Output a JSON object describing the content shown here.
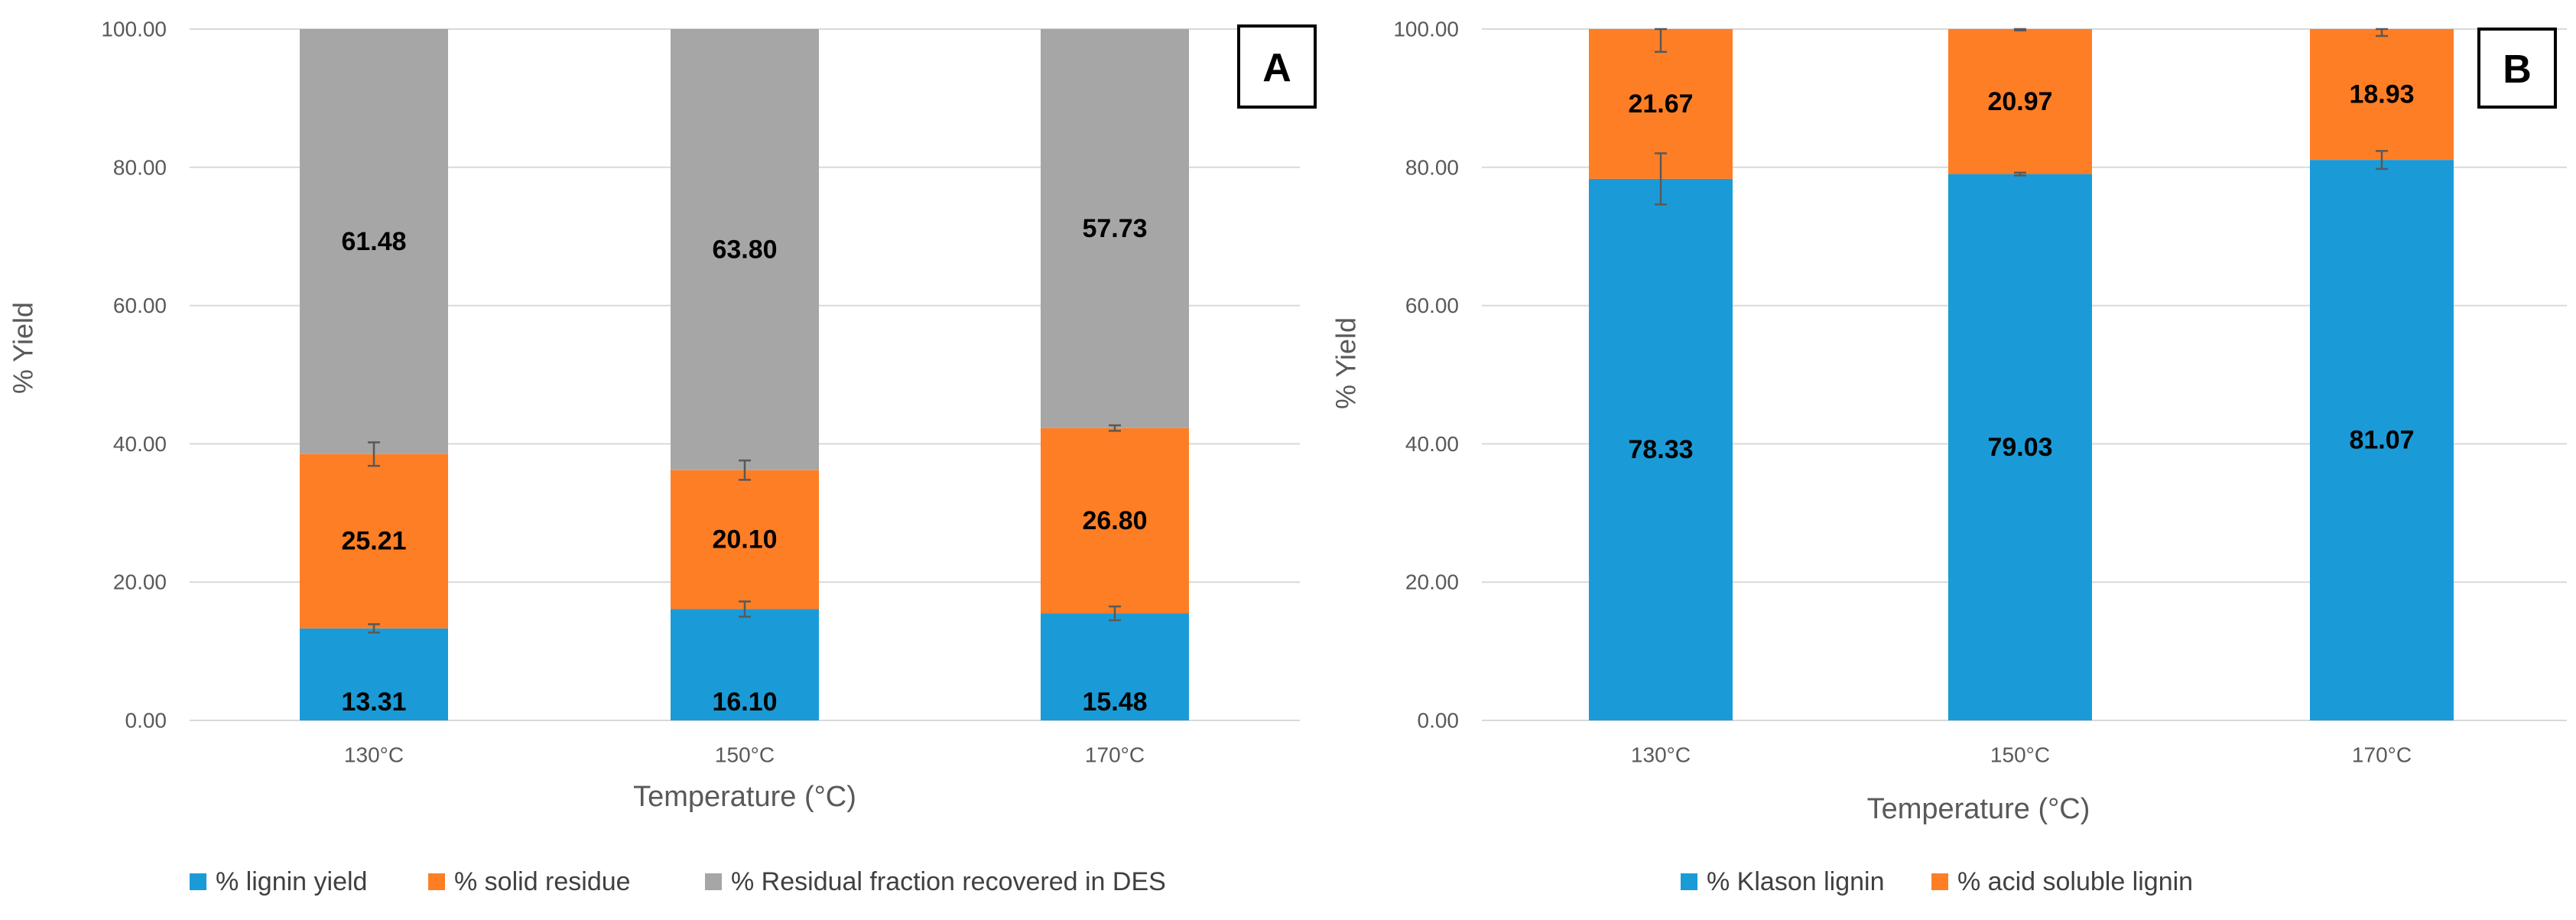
{
  "colors": {
    "blue": "#1a9bd7",
    "orange": "#fe7e26",
    "gray": "#a6a6a6",
    "grid": "#d9d9d9",
    "axis_text": "#595959",
    "title_text": "#404040",
    "error_bar": "#595959"
  },
  "chart_data": [
    {
      "type": "bar",
      "stacked": true,
      "panel_label": "A",
      "xlabel": "Temperature (°C)",
      "ylabel": "% Yield",
      "ylim": [
        0,
        100
      ],
      "yticks": [
        "0.00",
        "20.00",
        "40.00",
        "60.00",
        "80.00",
        "100.00"
      ],
      "categories": [
        "130°C",
        "150°C",
        "170°C"
      ],
      "legend_position": "bottom-left",
      "series": [
        {
          "name": "% lignin yield",
          "color_key": "blue",
          "values": [
            13.31,
            16.1,
            15.48
          ],
          "labels": [
            "13.31",
            "16.10",
            "15.48"
          ],
          "errors": [
            0.6,
            1.1,
            1.0
          ]
        },
        {
          "name": "% solid residue",
          "color_key": "orange",
          "values": [
            25.21,
            20.1,
            26.8
          ],
          "labels": [
            "25.21",
            "20.10",
            "26.80"
          ],
          "errors": [
            1.7,
            1.4,
            0.4
          ]
        },
        {
          "name": "% Residual fraction recovered in DES",
          "color_key": "gray",
          "values": [
            61.48,
            63.8,
            57.73
          ],
          "labels": [
            "61.48",
            "63.80",
            "57.73"
          ],
          "errors": [
            0,
            0,
            0
          ]
        }
      ]
    },
    {
      "type": "bar",
      "stacked": true,
      "panel_label": "B",
      "xlabel": "Temperature (°C)",
      "ylabel": "% Yield",
      "ylim": [
        0,
        100
      ],
      "yticks": [
        "0.00",
        "20.00",
        "40.00",
        "60.00",
        "80.00",
        "100.00"
      ],
      "categories": [
        "130°C",
        "150°C",
        "170°C"
      ],
      "legend_position": "bottom-center",
      "series": [
        {
          "name": "% Klason lignin",
          "color_key": "blue",
          "values": [
            78.33,
            79.03,
            81.07
          ],
          "labels": [
            "78.33",
            "79.03",
            "81.07"
          ],
          "errors": [
            3.7,
            0.2,
            1.3
          ]
        },
        {
          "name": "% acid soluble lignin",
          "color_key": "orange",
          "values": [
            21.67,
            20.97,
            18.93
          ],
          "labels": [
            "21.67",
            "20.97",
            "18.93"
          ],
          "errors": [
            3.3,
            0.2,
            1.0
          ]
        }
      ]
    }
  ]
}
